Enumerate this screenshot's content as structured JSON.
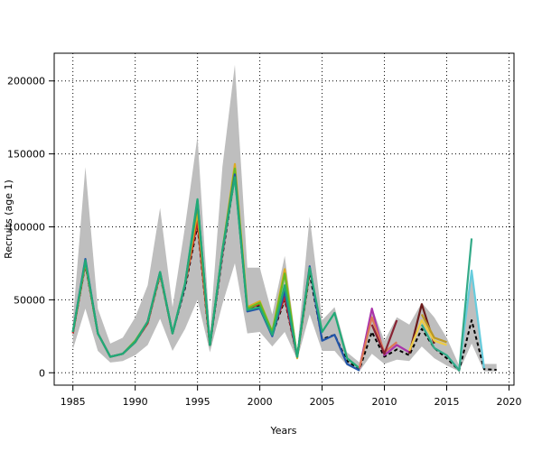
{
  "chart_data": {
    "type": "line",
    "title": "",
    "xlabel": "Years",
    "ylabel": "Recruits (age 1)",
    "xlim": [
      1983.5,
      2020.4
    ],
    "ylim": [
      -8500,
      219000
    ],
    "xticks": [
      1985,
      1990,
      1995,
      2000,
      2005,
      2010,
      2015,
      2020
    ],
    "yticks": [
      0,
      50000,
      100000,
      150000,
      200000
    ],
    "grid": true,
    "legend": "none",
    "band": {
      "color": "#bebebe",
      "x": [
        1985,
        1986,
        1987,
        1988,
        1989,
        1990,
        1991,
        1992,
        1993,
        1994,
        1995,
        1996,
        1997,
        1998,
        1999,
        2000,
        2001,
        2002,
        2003,
        2004,
        2005,
        2006,
        2007,
        2008,
        2009,
        2010,
        2011,
        2012,
        2013,
        2014,
        2015,
        2016,
        2017,
        2018,
        2019
      ],
      "lower": [
        16000,
        44000,
        15000,
        7000,
        8000,
        12000,
        19000,
        37000,
        15000,
        30000,
        50000,
        14000,
        47000,
        75000,
        27000,
        28000,
        18000,
        28000,
        9000,
        40000,
        15000,
        15000,
        5000,
        1000,
        13000,
        6000,
        9000,
        8000,
        18000,
        10000,
        5000,
        1000,
        20000,
        1000,
        1000
      ],
      "upper": [
        36000,
        141000,
        44000,
        20000,
        24000,
        38000,
        60000,
        113000,
        45000,
        100000,
        162000,
        28000,
        141000,
        211000,
        72000,
        72000,
        40000,
        80000,
        15000,
        107000,
        36000,
        45000,
        14000,
        7000,
        45000,
        22000,
        38000,
        33000,
        48000,
        38000,
        24000,
        5000,
        70000,
        6000,
        6000
      ]
    },
    "series": [
      {
        "color": "#000000",
        "dashed": true,
        "x": [
          1985,
          1986,
          1987,
          1988,
          1989,
          1990,
          1991,
          1992,
          1993,
          1994,
          1995,
          1996,
          1997,
          1998,
          1999,
          2000,
          2001,
          2002,
          2003,
          2004,
          2005,
          2006,
          2007,
          2008,
          2009,
          2010,
          2011,
          2012,
          2013,
          2014,
          2015,
          2016,
          2017,
          2018,
          2019
        ],
        "values": [
          27000,
          74000,
          27000,
          11000,
          13000,
          21000,
          34000,
          67000,
          27000,
          58000,
          101000,
          18000,
          80000,
          135000,
          43000,
          46000,
          26000,
          50000,
          11000,
          68000,
          23000,
          26000,
          8000,
          2500,
          28000,
          11000,
          16000,
          12000,
          30000,
          17000,
          10000,
          1500,
          36000,
          2500,
          2000
        ]
      },
      {
        "color": "#cc2222",
        "x": [
          1985,
          1986,
          1987,
          1988,
          1989,
          1990,
          1991,
          1992,
          1993,
          1994,
          1995,
          1996,
          1997,
          1998,
          1999,
          2000,
          2001,
          2002,
          2003,
          2004
        ],
        "values": [
          27000,
          75000,
          27000,
          11000,
          13000,
          21000,
          34000,
          68000,
          27000,
          60000,
          104000,
          19000,
          82000,
          138000,
          44000,
          47000,
          27000,
          52000,
          11000,
          70000
        ]
      },
      {
        "color": "#ddaa22",
        "x": [
          1985,
          1986,
          1987,
          1988,
          1989,
          1990,
          1991,
          1992,
          1993,
          1994,
          1995,
          1996,
          1997,
          1998,
          1999,
          2000,
          2001,
          2002,
          2003,
          2004
        ],
        "values": [
          28000,
          76000,
          27000,
          11000,
          13000,
          21000,
          35000,
          68000,
          27000,
          60000,
          110000,
          19000,
          83000,
          143000,
          45000,
          49000,
          28000,
          71000,
          10000,
          73000
        ]
      },
      {
        "color": "#66bb22",
        "x": [
          1985,
          1986,
          1987,
          1988,
          1989,
          1990,
          1991,
          1992,
          1993,
          1994,
          1995,
          1996,
          1997,
          1998,
          1999,
          2000,
          2001,
          2002,
          2003,
          2004
        ],
        "values": [
          28000,
          76000,
          27000,
          11000,
          13000,
          22000,
          35000,
          69000,
          27000,
          61000,
          115000,
          19000,
          84000,
          140000,
          44000,
          48000,
          28000,
          68000,
          11000,
          71000
        ]
      },
      {
        "color": "#2255aa",
        "x": [
          1985,
          1986,
          1987,
          1988,
          1989,
          1990,
          1991,
          1992,
          1993,
          1994,
          1995,
          1996,
          1997,
          1998,
          1999,
          2000,
          2001,
          2002,
          2003,
          2004,
          2005,
          2006,
          2007,
          2008
        ],
        "values": [
          28000,
          78000,
          27000,
          11000,
          13000,
          21000,
          35000,
          69000,
          27000,
          60000,
          118000,
          19000,
          83000,
          136000,
          42000,
          44000,
          25000,
          56000,
          11000,
          73000,
          22000,
          26000,
          6000,
          1500
        ]
      },
      {
        "color": "#22aa77",
        "x": [
          1985,
          1986,
          1987,
          1988,
          1989,
          1990,
          1991,
          1992,
          1993,
          1994,
          1995,
          1996,
          1997,
          1998,
          1999,
          2000,
          2001,
          2002,
          2003,
          2004,
          2005,
          2006,
          2007,
          2008
        ],
        "values": [
          28000,
          77000,
          27000,
          11000,
          13000,
          21000,
          35000,
          69000,
          27000,
          61000,
          119000,
          19000,
          84000,
          134000,
          43000,
          45000,
          26000,
          60000,
          11000,
          72000,
          28000,
          41000,
          10000,
          3000
        ]
      },
      {
        "color": "#aa33aa",
        "x": [
          2008,
          2009,
          2010,
          2011,
          2012
        ],
        "values": [
          3000,
          44000,
          12000,
          19000,
          14000
        ]
      },
      {
        "color": "#dd7755",
        "x": [
          2008,
          2009,
          2010,
          2011
        ],
        "values": [
          3500,
          38000,
          14000,
          21000
        ]
      },
      {
        "color": "#882233",
        "x": [
          2009,
          2010,
          2011
        ],
        "values": [
          33000,
          13000,
          36000
        ]
      },
      {
        "color": "#6b1a1a",
        "x": [
          2012,
          2013,
          2014
        ],
        "values": [
          13000,
          47000,
          20000
        ]
      },
      {
        "color": "#eecc44",
        "x": [
          2012,
          2013,
          2014,
          2015
        ],
        "values": [
          15000,
          36000,
          22000,
          19000
        ]
      },
      {
        "color": "#bb9922",
        "x": [
          2013,
          2014,
          2015
        ],
        "values": [
          40000,
          24000,
          21000
        ]
      },
      {
        "color": "#66ccdd",
        "x": [
          2015,
          2016,
          2017,
          2018
        ],
        "values": [
          12000,
          2000,
          70000,
          3000
        ]
      },
      {
        "color": "#33aa88",
        "x": [
          2013,
          2014,
          2015,
          2016,
          2017
        ],
        "values": [
          33000,
          17000,
          12000,
          1500,
          92000
        ]
      }
    ]
  }
}
